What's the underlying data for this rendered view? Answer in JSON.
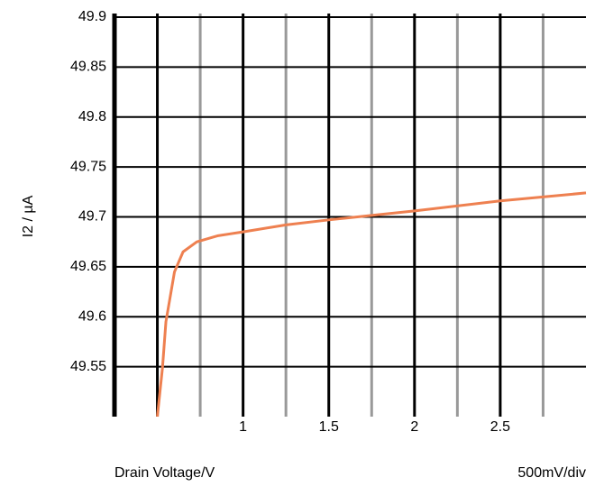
{
  "chart_data": {
    "type": "line",
    "y_label": "I2 / µA",
    "x_label": "Drain Voltage/V",
    "scale_note": "500mV/div",
    "x": [
      0.5,
      0.53,
      0.55,
      0.6,
      0.65,
      0.73,
      0.85,
      1.0,
      1.25,
      1.5,
      2.0,
      2.5,
      3.0
    ],
    "series": [
      {
        "color": "#ee8050",
        "values": [
          49.5,
          49.549,
          49.595,
          49.645,
          49.665,
          49.675,
          49.681,
          49.685,
          49.692,
          49.697,
          49.706,
          49.716,
          49.724
        ]
      }
    ],
    "xlim": [
      0.25,
      3.0
    ],
    "ylim": [
      49.5,
      49.9
    ],
    "xticks": [
      1,
      1.5,
      2,
      2.5
    ],
    "yticks": [
      49.55,
      49.6,
      49.65,
      49.7,
      49.75,
      49.8,
      49.85,
      49.9
    ],
    "x_major_grid": [
      0.5,
      1,
      1.5,
      2,
      2.5
    ],
    "x_minor_grid": [
      0.75,
      1.25,
      1.75,
      2.25,
      2.75
    ],
    "grid": true
  }
}
